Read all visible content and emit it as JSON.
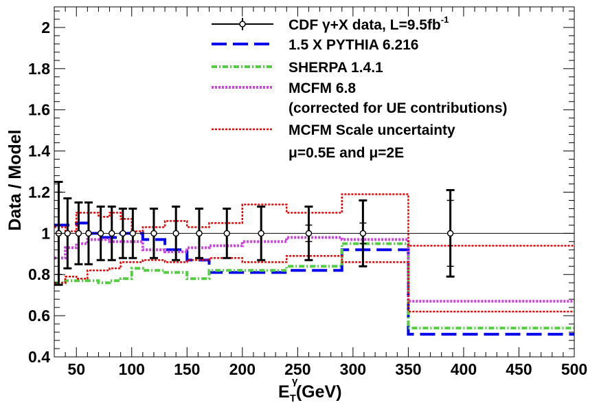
{
  "chart_data": {
    "type": "line",
    "xlabel_main": "E",
    "xlabel_sub": "T",
    "xlabel_sup": "γ",
    "xlabel_rest": "(GeV)",
    "ylabel": "Data / Model",
    "xlim": [
      30,
      500
    ],
    "ylim": [
      0.4,
      2.1
    ],
    "x_ticks": [
      50,
      100,
      150,
      200,
      250,
      300,
      350,
      400,
      450,
      500
    ],
    "x_tick_labels": [
      "50",
      "100",
      "150",
      "200",
      "250",
      "300",
      "350",
      "400",
      "450",
      "500"
    ],
    "y_ticks": [
      0.4,
      0.6,
      0.8,
      1.0,
      1.2,
      1.4,
      1.6,
      1.8,
      2.0
    ],
    "y_tick_labels": [
      "0.4",
      "0.6",
      "0.8",
      "1",
      "1.2",
      "1.4",
      "1.6",
      "1.8",
      "2"
    ],
    "grid": false,
    "legend_position": "top-right",
    "legend": [
      {
        "key": "data",
        "text": "CDF  γ+X data, L=9.5fb",
        "sup": "-1"
      },
      {
        "key": "pythia",
        "text": "1.5 X PYTHIA 6.216"
      },
      {
        "key": "sherpa",
        "text": "SHERPA 1.4.1"
      },
      {
        "key": "mcfm",
        "text": "MCFM 6.8"
      },
      {
        "key": "mcfm_note",
        "text": "(corrected for UE contributions)"
      },
      {
        "key": "scale",
        "text": "MCFM Scale uncertainty"
      },
      {
        "key": "scale_note",
        "text": "μ=0.5E and μ=2E"
      }
    ],
    "bin_edges": [
      30,
      40,
      50,
      60,
      70,
      80,
      90,
      100,
      110,
      130,
      150,
      170,
      200,
      240,
      290,
      350,
      500
    ],
    "data": {
      "name": "CDF γ+X data, L=9.5fb-1",
      "color": "#000000",
      "x": [
        34,
        42,
        52,
        61,
        72,
        82,
        92,
        101,
        120,
        140,
        161,
        186,
        217,
        260,
        309,
        388
      ],
      "y": [
        1.0,
        1.0,
        1.0,
        1.0,
        1.0,
        1.0,
        1.0,
        1.0,
        1.0,
        1.0,
        1.0,
        1.0,
        1.0,
        1.0,
        1.0,
        1.0
      ],
      "err_up": [
        0.25,
        0.17,
        0.15,
        0.15,
        0.13,
        0.13,
        0.12,
        0.12,
        0.12,
        0.13,
        0.12,
        0.12,
        0.13,
        0.13,
        0.16,
        0.21
      ],
      "err_dn": [
        0.25,
        0.17,
        0.15,
        0.15,
        0.13,
        0.13,
        0.12,
        0.12,
        0.12,
        0.13,
        0.12,
        0.12,
        0.13,
        0.13,
        0.16,
        0.21
      ],
      "inner_up": [
        0.2,
        0.0,
        0.0,
        0.0,
        0.0,
        0.0,
        0.0,
        0.0,
        0.0,
        0.0,
        0.0,
        0.0,
        0.0,
        0.04,
        0.05,
        0.16
      ],
      "inner_dn": [
        0.2,
        0.0,
        0.0,
        0.0,
        0.0,
        0.0,
        0.0,
        0.0,
        0.0,
        0.0,
        0.0,
        0.0,
        0.0,
        0.04,
        0.05,
        0.16
      ]
    },
    "series": [
      {
        "key": "pythia",
        "name": "1.5 X PYTHIA 6.216",
        "color": "#0000ee",
        "values": [
          1.04,
          1.04,
          1.05,
          1.0,
          0.98,
          0.98,
          1.0,
          1.0,
          0.97,
          0.92,
          0.87,
          0.81,
          0.81,
          0.82,
          0.92,
          0.51
        ]
      },
      {
        "key": "sherpa",
        "name": "SHERPA 1.4.1",
        "color": "#55cc44",
        "values": [
          0.76,
          0.77,
          0.77,
          0.77,
          0.76,
          0.77,
          0.78,
          0.83,
          0.82,
          0.81,
          0.78,
          0.82,
          0.82,
          0.84,
          0.95,
          0.54
        ]
      },
      {
        "key": "mcfm",
        "name": "MCFM 6.8",
        "color": "#cc44dd",
        "values": [
          0.88,
          0.93,
          0.95,
          0.97,
          0.97,
          0.96,
          0.96,
          0.96,
          0.92,
          0.91,
          0.93,
          0.94,
          0.96,
          0.98,
          0.97,
          0.67
        ]
      },
      {
        "key": "scale_hi",
        "name": "MCFM Scale uncertainty (upper)",
        "color": "#ee0000",
        "values": [
          1.03,
          1.01,
          1.1,
          1.1,
          1.08,
          1.1,
          1.07,
          1.01,
          1.03,
          1.06,
          1.03,
          1.05,
          1.14,
          1.1,
          1.19,
          0.94
        ]
      },
      {
        "key": "scale_lo",
        "name": "MCFM Scale uncertainty (lower)",
        "color": "#ee0000",
        "values": [
          0.76,
          0.79,
          0.78,
          0.82,
          0.82,
          0.83,
          0.86,
          0.86,
          0.87,
          0.86,
          0.87,
          0.88,
          0.86,
          0.89,
          0.86,
          0.62
        ]
      }
    ]
  }
}
